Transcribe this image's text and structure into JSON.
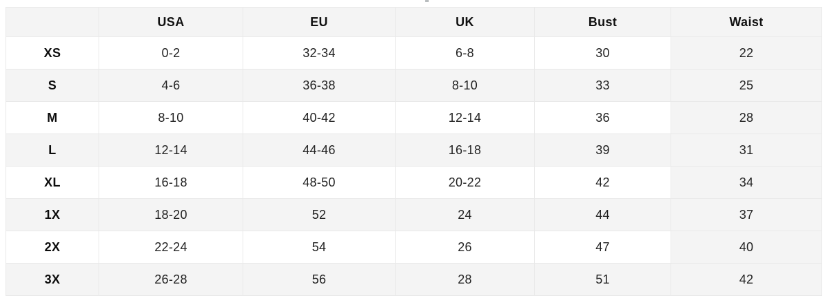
{
  "page": {
    "background": "#ffffff",
    "note_fragment": "tiny cut-off text remnant at top center"
  },
  "colors": {
    "stripe_gray": "#f4f4f4",
    "header_bg": "#f4f4f4",
    "waist_column_bg": "#f4f4f4",
    "border": "#e9e9e9",
    "header_text": "#101010",
    "body_text": "#222222"
  },
  "table": {
    "columns": [
      {
        "key": "size",
        "label": ""
      },
      {
        "key": "usa",
        "label": "USA"
      },
      {
        "key": "eu",
        "label": "EU"
      },
      {
        "key": "uk",
        "label": "UK"
      },
      {
        "key": "bust",
        "label": "Bust"
      },
      {
        "key": "waist",
        "label": "Waist"
      }
    ],
    "rows": [
      {
        "size": "XS",
        "usa": "0-2",
        "eu": "32-34",
        "uk": "6-8",
        "bust": "30",
        "waist": "22"
      },
      {
        "size": "S",
        "usa": "4-6",
        "eu": "36-38",
        "uk": "8-10",
        "bust": "33",
        "waist": "25"
      },
      {
        "size": "M",
        "usa": "8-10",
        "eu": "40-42",
        "uk": "12-14",
        "bust": "36",
        "waist": "28"
      },
      {
        "size": "L",
        "usa": "12-14",
        "eu": "44-46",
        "uk": "16-18",
        "bust": "39",
        "waist": "31"
      },
      {
        "size": "XL",
        "usa": "16-18",
        "eu": "48-50",
        "uk": "20-22",
        "bust": "42",
        "waist": "34"
      },
      {
        "size": "1X",
        "usa": "18-20",
        "eu": "52",
        "uk": "24",
        "bust": "44",
        "waist": "37"
      },
      {
        "size": "2X",
        "usa": "22-24",
        "eu": "54",
        "uk": "26",
        "bust": "47",
        "waist": "40"
      },
      {
        "size": "3X",
        "usa": "26-28",
        "eu": "56",
        "uk": "28",
        "bust": "51",
        "waist": "42"
      }
    ]
  }
}
